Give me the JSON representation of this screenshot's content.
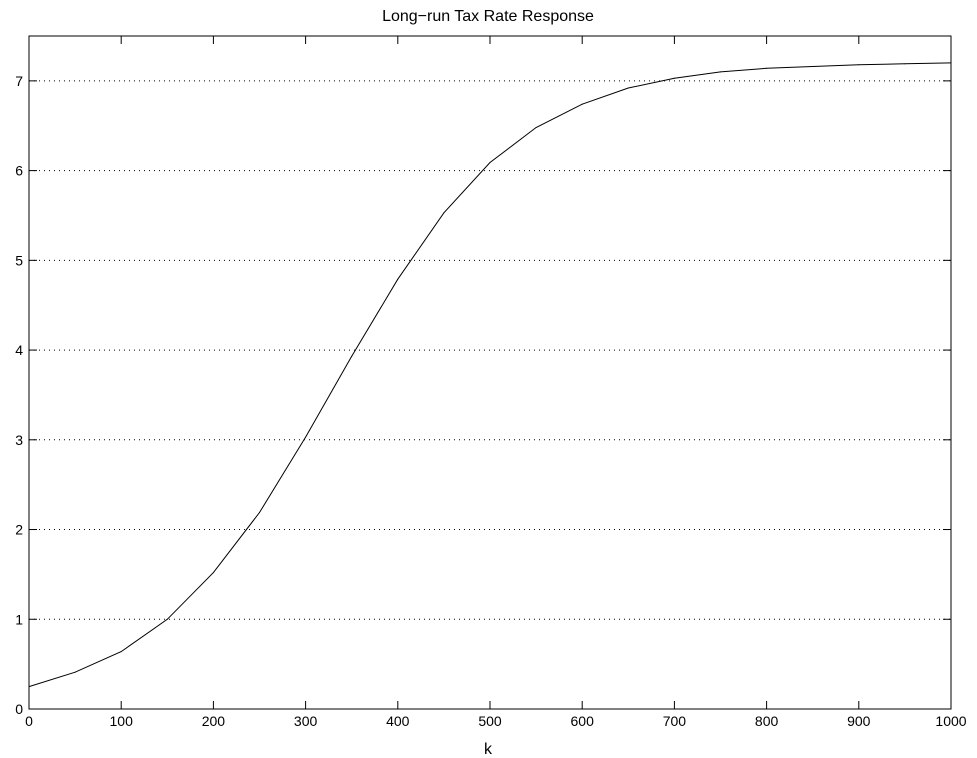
{
  "chart_data": {
    "type": "line",
    "title": "Long−run Tax Rate Response",
    "xlabel": "k",
    "ylabel": "",
    "xlim": [
      0,
      1000
    ],
    "ylim": [
      0,
      7.5
    ],
    "grid": "horizontal-dotted",
    "x_ticks": [
      "0",
      "100",
      "200",
      "300",
      "400",
      "500",
      "600",
      "700",
      "800",
      "900",
      "1000"
    ],
    "y_ticks": [
      "0",
      "1",
      "2",
      "3",
      "4",
      "5",
      "6",
      "7"
    ],
    "series": [
      {
        "x": [
          0,
          50,
          100,
          150,
          200,
          250,
          300,
          350,
          400,
          450,
          500,
          550,
          600,
          650,
          700,
          750,
          800,
          850,
          900,
          950,
          1000
        ],
        "y": [
          0.25,
          0.41,
          0.64,
          1.0,
          1.52,
          2.19,
          3.03,
          3.93,
          4.79,
          5.53,
          6.09,
          6.48,
          6.74,
          6.92,
          7.03,
          7.1,
          7.14,
          7.16,
          7.18,
          7.19,
          7.2
        ],
        "color": "#000000"
      }
    ]
  }
}
